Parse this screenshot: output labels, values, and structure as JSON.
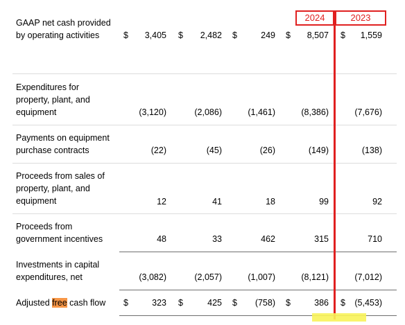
{
  "header": {
    "year_left": "2024",
    "year_right": "2023"
  },
  "rows": [
    {
      "label_lines": [
        "GAAP net cash provided",
        "by operating activities"
      ],
      "cells": [
        {
          "dollar": "$",
          "value": "3,405"
        },
        {
          "dollar": "$",
          "value": "2,482"
        },
        {
          "dollar": "$",
          "value": "249"
        },
        {
          "dollar": "$",
          "value": "8,507"
        },
        {
          "dollar": "$",
          "value": "1,559"
        }
      ]
    },
    {
      "label_lines": [
        "Expenditures for",
        "property, plant, and",
        "equipment"
      ],
      "cells": [
        {
          "dollar": "",
          "value": "(3,120)"
        },
        {
          "dollar": "",
          "value": "(2,086)"
        },
        {
          "dollar": "",
          "value": "(1,461)"
        },
        {
          "dollar": "",
          "value": "(8,386)"
        },
        {
          "dollar": "",
          "value": "(7,676)"
        }
      ]
    },
    {
      "label_lines": [
        "Payments on equipment",
        "purchase contracts"
      ],
      "cells": [
        {
          "dollar": "",
          "value": "(22)"
        },
        {
          "dollar": "",
          "value": "(45)"
        },
        {
          "dollar": "",
          "value": "(26)"
        },
        {
          "dollar": "",
          "value": "(149)"
        },
        {
          "dollar": "",
          "value": "(138)"
        }
      ]
    },
    {
      "label_lines": [
        "Proceeds from sales of",
        "property, plant, and",
        "equipment"
      ],
      "cells": [
        {
          "dollar": "",
          "value": "12"
        },
        {
          "dollar": "",
          "value": "41"
        },
        {
          "dollar": "",
          "value": "18"
        },
        {
          "dollar": "",
          "value": "99"
        },
        {
          "dollar": "",
          "value": "92"
        }
      ]
    },
    {
      "label_lines": [
        "Proceeds from",
        "government incentives"
      ],
      "cells": [
        {
          "dollar": "",
          "value": "48"
        },
        {
          "dollar": "",
          "value": "33"
        },
        {
          "dollar": "",
          "value": "462"
        },
        {
          "dollar": "",
          "value": "315"
        },
        {
          "dollar": "",
          "value": "710"
        }
      ]
    },
    {
      "label_lines": [
        "Investments in capital",
        "expenditures, net"
      ],
      "cells": [
        {
          "dollar": "",
          "value": "(3,082)"
        },
        {
          "dollar": "",
          "value": "(2,057)"
        },
        {
          "dollar": "",
          "value": "(1,007)"
        },
        {
          "dollar": "",
          "value": "(8,121)"
        },
        {
          "dollar": "",
          "value": "(7,012)"
        }
      ]
    },
    {
      "label_lines": [
        "Adjusted free cash flow"
      ],
      "highlight_phrase": "free",
      "cells": [
        {
          "dollar": "$",
          "value": "323"
        },
        {
          "dollar": "$",
          "value": "425"
        },
        {
          "dollar": "$",
          "value": "(758)"
        },
        {
          "dollar": "$",
          "value": "386"
        },
        {
          "dollar": "$",
          "value": "(5,453)"
        }
      ]
    }
  ],
  "colors": {
    "annotation_red": "#e02020",
    "word_highlight": "#f79646",
    "marker_yellow": "#f8f35a"
  }
}
